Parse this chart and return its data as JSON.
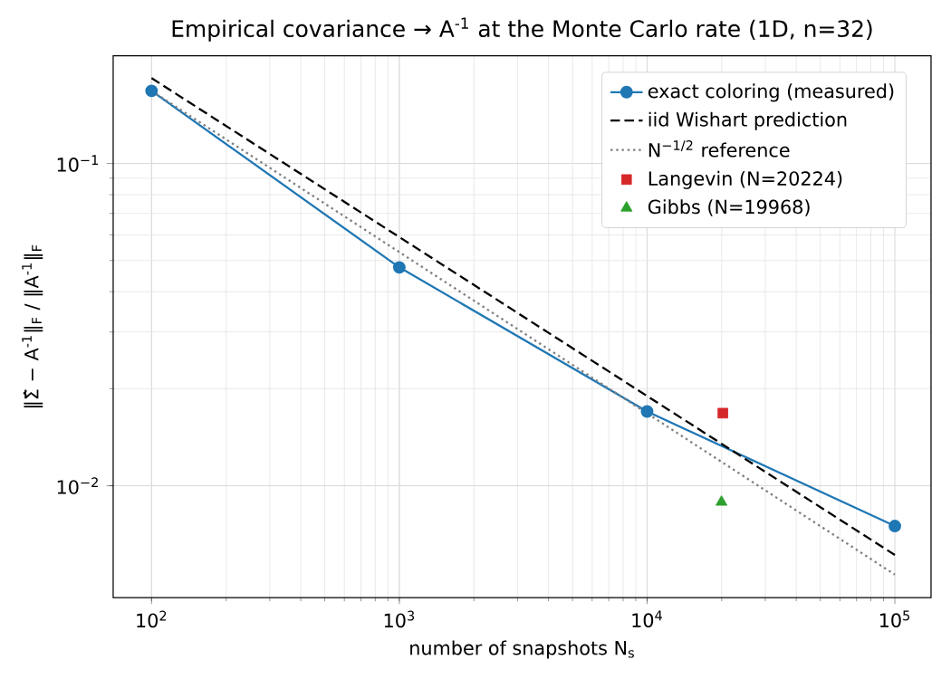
{
  "chart_data": {
    "type": "line",
    "title": "Empirical covariance → A$^{-1}$ at the Monte Carlo rate (1D, n=32)",
    "xlabel": "number of snapshots N$_{s}$",
    "ylabel": "‖Σ̂ − A$^{-1}$‖$_{F}$ / ‖A$^{-1}$‖$_{F}$",
    "log": "xy",
    "grid": true,
    "legend": "top right",
    "xlim": [
      70,
      140000
    ],
    "ylim": [
      0.0045,
      0.216
    ],
    "xticks": [
      {
        "value": 100,
        "label": "10$^{2}$"
      },
      {
        "value": 1000,
        "label": "10$^{3}$"
      },
      {
        "value": 10000,
        "label": "10$^{4}$"
      },
      {
        "value": 100000,
        "label": "10$^{5}$"
      }
    ],
    "yticks": [
      {
        "value": 0.01,
        "label": "10$^{−2}$"
      },
      {
        "value": 0.1,
        "label": "10$^{−1}$"
      }
    ],
    "series": [
      {
        "name": "exact coloring (measured)",
        "color": "#1f77b4",
        "marker": "circle",
        "line_style": "solid",
        "x": [
          100,
          1000,
          10000,
          100000
        ],
        "values": [
          0.168,
          0.0476,
          0.017,
          0.0075
        ]
      },
      {
        "name": "iid Wishart prediction",
        "color": "#000000",
        "marker": "none",
        "line_style": "dashed",
        "x": [
          100,
          100000
        ],
        "values": [
          0.184,
          0.0061
        ]
      },
      {
        "name": "N$^{−1/2}$ reference",
        "color": "#808080",
        "marker": "none",
        "line_style": "dotted",
        "x": [
          100,
          100000
        ],
        "values": [
          0.168,
          0.0053
        ]
      },
      {
        "name": "Langevin (N=20224)",
        "type": "scatter",
        "color": "#d62728",
        "marker": "square",
        "x": [
          20224
        ],
        "values": [
          0.0168
        ]
      },
      {
        "name": "Gibbs (N=19968)",
        "type": "scatter",
        "color": "#2ca02c",
        "marker": "triangle",
        "x": [
          19968
        ],
        "values": [
          0.0089
        ]
      }
    ]
  }
}
